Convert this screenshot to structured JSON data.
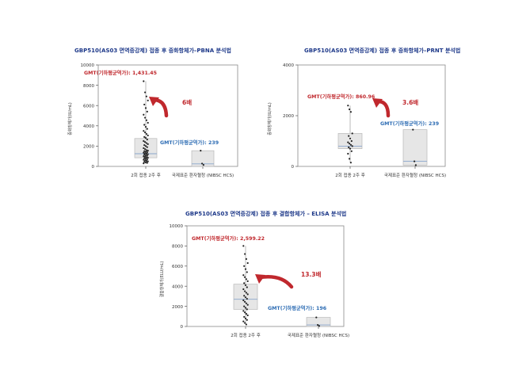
{
  "colors": {
    "title": "#1f3a8a",
    "gmt_red": "#c0282d",
    "gmt_blue": "#2e6db4",
    "arrow": "#c0282d",
    "box_fill": "#e6e6e6",
    "box_stroke": "#b9b9b9"
  },
  "chart_data": [
    {
      "type": "box",
      "title": "GBP510(AS03 면역증강제) 접종 후 중화항체가–PBNA 분석법",
      "ylabel": "중화항체가(IU/mL)",
      "ylim": [
        0,
        10000
      ],
      "yticks": [
        "0",
        "2000",
        "4000",
        "6000",
        "8000",
        "10000"
      ],
      "categories": [
        "2회 접종 2주 후",
        "국제표준 환자혈청 (NIBSC HCS)"
      ],
      "gmt_labels": [
        "GMT(기하평균역가): 1,431.45",
        "GMT(기하평균역가): 239"
      ],
      "fold_label": "6배",
      "boxes": [
        {
          "q1": 850,
          "median": 1250,
          "q3": 2750,
          "min": 250,
          "max": 8400
        },
        {
          "q1": 0,
          "median": 250,
          "q3": 1550,
          "min": 0,
          "max": 1550
        }
      ],
      "points": [
        [
          8400,
          7300,
          6900,
          6500,
          6100,
          5750,
          5400,
          5100,
          4800,
          4550,
          4300,
          4100,
          3900,
          3700,
          3500,
          3350,
          3200,
          3050,
          2900,
          2800,
          2650,
          2500,
          2400,
          2300,
          2200,
          2100,
          2000,
          1900,
          1800,
          1700,
          1600,
          1550,
          1500,
          1450,
          1400,
          1350,
          1300,
          1250,
          1200,
          1150,
          1100,
          1050,
          1000,
          950,
          900,
          850,
          800,
          750,
          700,
          650,
          600,
          550,
          500,
          450,
          400,
          350,
          300
        ],
        [
          1550,
          280,
          150
        ]
      ]
    },
    {
      "type": "box",
      "title": "GBP510(AS03 면역증강제) 접종 후 중화항체가–PRNT 분석법",
      "ylabel": "중화항체가(IU/mL)",
      "ylim": [
        0,
        4000
      ],
      "yticks": [
        "0",
        "2000",
        "4000"
      ],
      "categories": [
        "2회 접종 2주 후",
        "국제표준 환자혈청 (NIBSC HCS)"
      ],
      "gmt_labels": [
        "GMT(기하평균역가): 860.96",
        "GMT(기하평균역가): 239"
      ],
      "fold_label": "3.6배",
      "boxes": [
        {
          "q1": 700,
          "median": 800,
          "q3": 1300,
          "min": 150,
          "max": 2400
        },
        {
          "q1": 50,
          "median": 200,
          "q3": 1450,
          "min": 0,
          "max": 1450
        }
      ],
      "points": [
        [
          2400,
          2250,
          2150,
          1300,
          1200,
          1100,
          1000,
          950,
          900,
          850,
          800,
          750,
          700,
          600,
          500,
          300,
          150
        ],
        [
          1450,
          200,
          50
        ]
      ]
    },
    {
      "type": "box",
      "title": "GBP510(AS03 면역증강제) 접종 후 결합항체가 – ELISA 분석법",
      "ylabel": "결합항체가(ELU/mL)",
      "ylim": [
        0,
        10000
      ],
      "yticks": [
        "0",
        "2000",
        "4000",
        "6000",
        "8000",
        "10000"
      ],
      "categories": [
        "2회 접종 2주 후",
        "국제표준 환자혈청 (NIBSC HCS)"
      ],
      "gmt_labels": [
        "GMT(기하평균역가): 2,599.22",
        "GMT(기하평균역가): 196"
      ],
      "fold_label": "13.3배",
      "boxes": [
        {
          "q1": 1700,
          "median": 2700,
          "q3": 4200,
          "min": 200,
          "max": 8000
        },
        {
          "q1": 0,
          "median": 150,
          "q3": 900,
          "min": 0,
          "max": 900
        }
      ],
      "points": [
        [
          8000,
          7200,
          6700,
          6300,
          6000,
          5700,
          5400,
          5100,
          4900,
          4700,
          4500,
          4300,
          4100,
          3900,
          3700,
          3500,
          3350,
          3200,
          3050,
          2900,
          2750,
          2600,
          2450,
          2300,
          2150,
          2000,
          1850,
          1700,
          1550,
          1400,
          1250,
          1100,
          950,
          800,
          650,
          500,
          350,
          200
        ],
        [
          900,
          150,
          50
        ]
      ]
    }
  ]
}
